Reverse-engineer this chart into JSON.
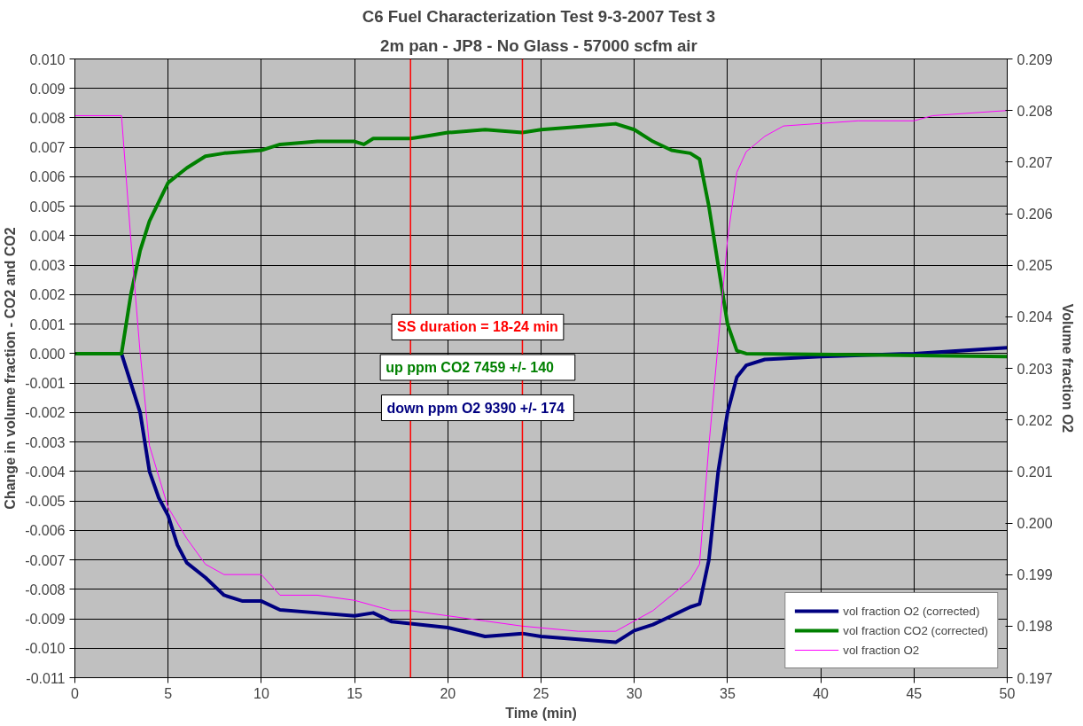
{
  "chart_data": {
    "type": "line",
    "title": "C6 Fuel Characterization Test  9-3-2007 Test 3",
    "subtitle": "2m pan - JP8 - No Glass -  57000 scfm air",
    "xlabel": "Time (min)",
    "ylabel": "Change in volume fraction - CO2 and CO2",
    "y2label": "Volume fraction O2",
    "series": [
      {
        "name": "vol fraction O2 (corrected)",
        "color": "#000080",
        "x": [
          0,
          2.5,
          3,
          3.5,
          4,
          4.5,
          5,
          5.5,
          6,
          7,
          8,
          9,
          10,
          11,
          13,
          15,
          16,
          17,
          20,
          22,
          24,
          25,
          27,
          29,
          30,
          31,
          32,
          33,
          33.5,
          34,
          34.5,
          35,
          35.5,
          36,
          37,
          40,
          45,
          50
        ],
        "values": [
          0,
          0,
          -0.001,
          -0.002,
          -0.004,
          -0.0049,
          -0.0055,
          -0.0065,
          -0.0071,
          -0.0076,
          -0.0082,
          -0.0084,
          -0.0084,
          -0.0087,
          -0.0088,
          -0.0089,
          -0.0088,
          -0.0091,
          -0.0093,
          -0.0096,
          -0.0095,
          -0.0096,
          -0.0097,
          -0.0098,
          -0.0094,
          -0.0092,
          -0.0089,
          -0.0086,
          -0.0085,
          -0.007,
          -0.004,
          -0.002,
          -0.0008,
          -0.0004,
          -0.0002,
          -0.0001,
          0,
          0.0002
        ]
      },
      {
        "name": "vol fraction CO2 (corrected)",
        "color": "#008000",
        "x": [
          0,
          2.5,
          3,
          3.5,
          4,
          5,
          6,
          7,
          8,
          10,
          11,
          13,
          15,
          15.5,
          16,
          18,
          19,
          20,
          22,
          24,
          25,
          27,
          29,
          30,
          31,
          32,
          33,
          33.5,
          34,
          34.5,
          35,
          35.5,
          36,
          50
        ],
        "values": [
          0,
          0,
          0.002,
          0.0035,
          0.0045,
          0.0058,
          0.0063,
          0.0067,
          0.0068,
          0.0069,
          0.0071,
          0.0072,
          0.0072,
          0.0071,
          0.0073,
          0.0073,
          0.0074,
          0.0075,
          0.0076,
          0.0075,
          0.0076,
          0.0077,
          0.0078,
          0.0076,
          0.0072,
          0.0069,
          0.0068,
          0.0066,
          0.005,
          0.003,
          0.001,
          0.0001,
          0,
          -0.0001
        ]
      },
      {
        "name": "vol fraction O2",
        "color": "#ff00ff",
        "axis": "y2",
        "x": [
          0,
          2.5,
          3,
          3.5,
          4,
          5,
          6,
          7,
          8,
          10,
          11,
          13,
          15,
          16,
          17,
          18,
          20,
          22,
          24,
          27,
          29,
          31,
          32,
          33,
          33.5,
          34,
          34.5,
          35,
          35.5,
          36,
          37,
          38,
          42,
          45,
          46,
          50
        ],
        "values": [
          0.2079,
          0.2079,
          0.2055,
          0.2033,
          0.2015,
          0.2003,
          0.1997,
          0.1992,
          0.199,
          0.199,
          0.1986,
          0.1986,
          0.1985,
          0.1984,
          0.1983,
          0.1983,
          0.1982,
          0.1981,
          0.198,
          0.1979,
          0.1979,
          0.1983,
          0.1986,
          0.1989,
          0.1992,
          0.2015,
          0.2035,
          0.2055,
          0.2068,
          0.2072,
          0.2075,
          0.2077,
          0.2078,
          0.2078,
          0.2079,
          0.208
        ]
      }
    ],
    "xlim": [
      0,
      50
    ],
    "xticks": [
      0,
      5,
      10,
      15,
      20,
      25,
      30,
      35,
      40,
      45,
      50
    ],
    "ylim": [
      -0.011,
      0.01
    ],
    "yticks": [
      -0.011,
      {
        "value": -0.01,
        "label": "-0.010"
      },
      -0.009,
      -0.008,
      -0.007,
      -0.006,
      -0.005,
      -0.004,
      -0.003,
      -0.002,
      -0.001,
      {
        "value": 0,
        "label": "0.000"
      },
      0.001,
      0.002,
      0.003,
      0.004,
      0.005,
      0.006,
      0.007,
      0.008,
      0.009,
      {
        "value": 0.01,
        "label": "0.010"
      }
    ],
    "y2lim": [
      0.197,
      0.209
    ],
    "y2ticks": [
      0.197,
      0.198,
      0.199,
      {
        "value": 0.2,
        "label": "0.200"
      },
      0.201,
      0.202,
      0.203,
      0.204,
      0.205,
      0.206,
      0.207,
      0.208,
      0.209
    ],
    "ref_lines": [
      {
        "axis": "x",
        "value": 18,
        "color": "#ff0000"
      },
      {
        "axis": "x",
        "value": 24,
        "color": "#ff0000"
      }
    ],
    "annotations": [
      "SS duration = 18-24 min",
      "up ppm CO2     7459 +/- 140",
      "down ppm O2  9390 +/- 174"
    ],
    "grid": true,
    "legend": "bottom right"
  }
}
